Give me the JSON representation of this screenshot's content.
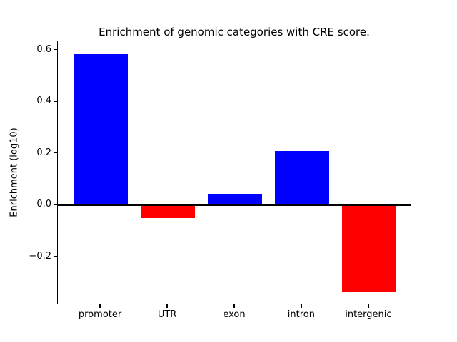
{
  "chart_data": {
    "type": "bar",
    "title": "Enrichment of genomic categories with CRE score.",
    "xlabel": "",
    "ylabel": "Enrichment (log10)",
    "categories": [
      "promoter",
      "UTR",
      "exon",
      "intron",
      "intergenic"
    ],
    "values": [
      0.585,
      -0.05,
      0.045,
      0.21,
      -0.335
    ],
    "bar_colors": [
      "#0000ff",
      "#ff0000",
      "#0000ff",
      "#0000ff",
      "#ff0000"
    ],
    "positive_color": "#0000ff",
    "negative_color": "#ff0000",
    "ylim": [
      -0.385,
      0.635
    ],
    "yticks": [
      -0.2,
      0.0,
      0.2,
      0.4,
      0.6
    ],
    "ytick_labels": [
      "−0.2",
      "0.0",
      "0.2",
      "0.4",
      "0.6"
    ],
    "zero_line_y": 0,
    "grid": false,
    "legend": "none",
    "bar_width_fraction": 0.8
  }
}
